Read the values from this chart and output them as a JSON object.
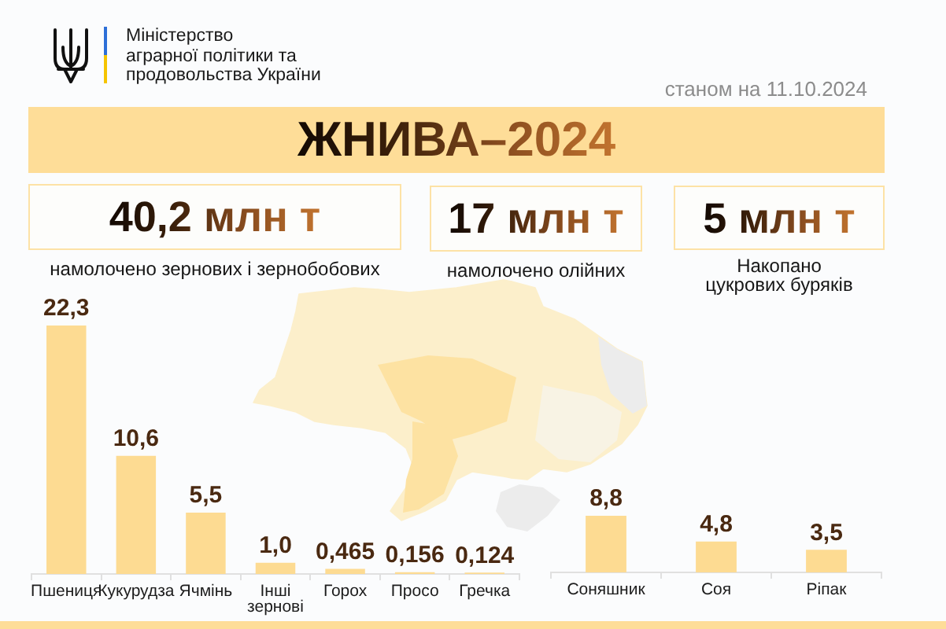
{
  "chart_data": [
    {
      "type": "other",
      "title": "ЖНИВА–2024",
      "annotations": [
        "Міністерство\nаграрної політики та\nпродовольства України",
        "станом на 11.10.2024",
        "5 млн т",
        "Накопано\nцукрових буряків"
      ]
    },
    {
      "type": "bar",
      "title": "40,2 млн т",
      "subtitle": "намолочено зернових і зернобобових",
      "categories": [
        "Пшениця",
        "Кукурудза",
        "Ячмінь",
        "Інші\nзернові",
        "Горох",
        "Просо",
        "Гречка"
      ],
      "values": [
        22.3,
        10.6,
        5.5,
        1.0,
        0.465,
        0.156,
        0.124
      ],
      "value_labels": [
        "22,3",
        "10,6",
        "5,5",
        "1,0",
        "0,465",
        "0,156",
        "0,124"
      ],
      "color": "#fddb92"
    },
    {
      "type": "bar",
      "title": "17 млн т",
      "subtitle": "намолочено олійних",
      "categories": [
        "Соняшник",
        "Соя",
        "Ріпак"
      ],
      "values": [
        8.8,
        4.8,
        3.5
      ],
      "value_labels": [
        "8,8",
        "4,8",
        "3,5"
      ],
      "color": "#fddb92"
    }
  ]
}
